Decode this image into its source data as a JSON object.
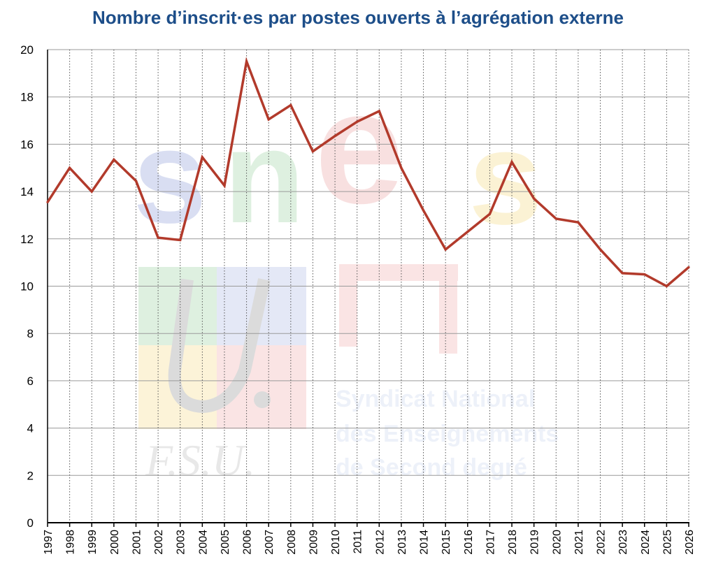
{
  "chart_data": {
    "type": "line",
    "title": "Nombre d’inscrit·es par postes ouverts à l’agrégation externe",
    "xlabel": "",
    "ylabel": "",
    "x": [
      "1997",
      "1998",
      "1999",
      "2000",
      "2001",
      "2002",
      "2003",
      "2004",
      "2005",
      "2006",
      "2007",
      "2008",
      "2009",
      "2010",
      "2011",
      "2012",
      "2013",
      "2014",
      "2015",
      "2016",
      "2017",
      "2018",
      "2019",
      "2020",
      "2021",
      "2022",
      "2023",
      "2024",
      "2025",
      "2026"
    ],
    "values": [
      13.55,
      15.0,
      14.0,
      15.35,
      14.45,
      12.05,
      11.95,
      15.45,
      14.25,
      19.5,
      17.05,
      17.65,
      15.7,
      16.35,
      16.95,
      17.4,
      15.0,
      13.2,
      11.55,
      12.3,
      13.05,
      15.25,
      13.7,
      12.85,
      12.7,
      11.55,
      10.55,
      10.5,
      10.0,
      10.8
    ],
    "ylim": [
      0,
      20
    ],
    "yticks": [
      0,
      2,
      4,
      6,
      8,
      10,
      12,
      14,
      16,
      18,
      20
    ],
    "grid": {
      "horizontal": true,
      "vertical": "dotted"
    },
    "legend": "none",
    "line_color": "#b23a2b"
  },
  "watermark": {
    "letters": [
      "s",
      "n",
      "e",
      "s"
    ],
    "org_lines": [
      "Syndicat National",
      "des Enseignements",
      "de Second degré"
    ],
    "fsu": "F.S.U."
  }
}
